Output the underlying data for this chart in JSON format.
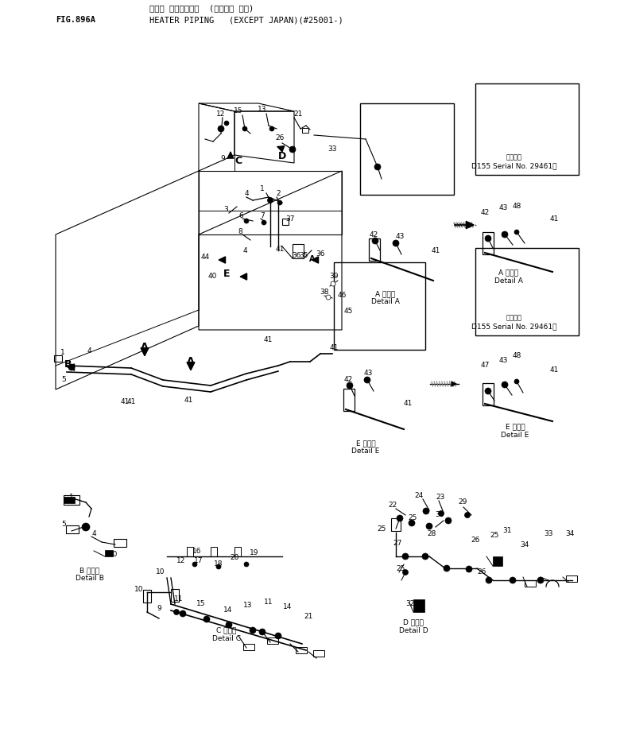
{
  "title_japanese": "ヒータ パイピング・  (カイガイ ヨク)",
  "title_english": "HEATER PIPING   (EXCEPT JAPAN)(#25001-)",
  "fig_number": "FIG.896A",
  "bg_color": "#ffffff",
  "line_color": "#000000",
  "text_color": "#000000",
  "serial_text_a": "D155 Serial No. 29461～",
  "serial_text_e": "D155 Serial No. 29461～",
  "detail_a_label_jp": "詳細図",
  "detail_a_label_en": "Detail A",
  "detail_b_label_jp": "B 詳細図",
  "detail_b_label_en": "Detail B",
  "detail_c_label_jp": "C 詳細図",
  "detail_c_label_en": "Detail C",
  "detail_d_label_jp": "D 詳細図",
  "detail_d_label_en": "Detail D",
  "detail_e_label_jp": "E 詳細図",
  "detail_e_label_en": "Detail E",
  "tekiyo_jp": "適用番号",
  "tekiyo2_jp": "適用番号"
}
